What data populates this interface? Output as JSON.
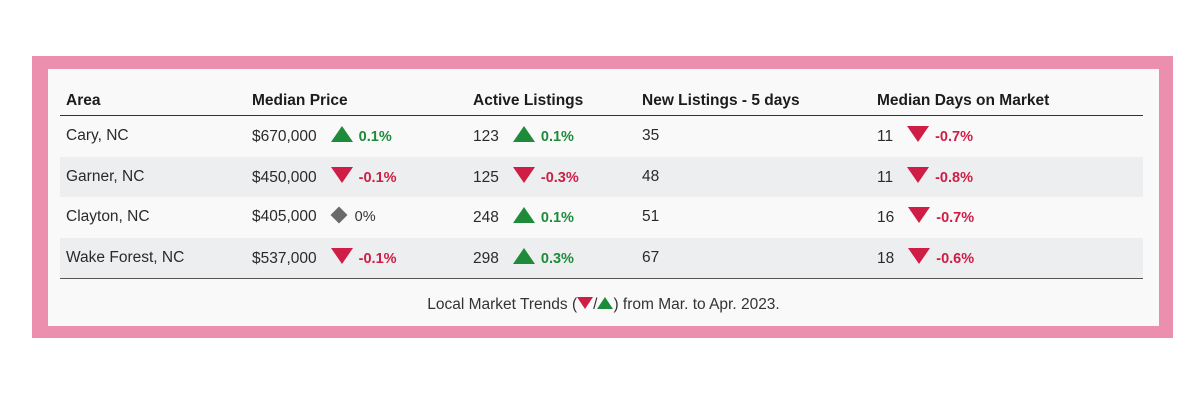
{
  "table": {
    "headers": [
      "Area",
      "Median Price",
      "Active Listings",
      "New Listings - 5 days",
      "Median Days on Market"
    ],
    "rows": [
      {
        "area": "Cary, NC",
        "price": "$670,000",
        "price_change": "0.1%",
        "price_dir": "up",
        "active": "123",
        "active_change": "0.1%",
        "active_dir": "up",
        "new": "35",
        "days": "11",
        "days_change": "-0.7%",
        "days_dir": "down"
      },
      {
        "area": "Garner, NC",
        "price": "$450,000",
        "price_change": "-0.1%",
        "price_dir": "down",
        "active": "125",
        "active_change": "-0.3%",
        "active_dir": "down",
        "new": "48",
        "days": "11",
        "days_change": "-0.8%",
        "days_dir": "down"
      },
      {
        "area": "Clayton, NC",
        "price": "$405,000",
        "price_change": "0%",
        "price_dir": "flat",
        "active": "248",
        "active_change": "0.1%",
        "active_dir": "up",
        "new": "51",
        "days": "16",
        "days_change": "-0.7%",
        "days_dir": "down"
      },
      {
        "area": "Wake Forest, NC",
        "price": "$537,000",
        "price_change": "-0.1%",
        "price_dir": "down",
        "active": "298",
        "active_change": "0.3%",
        "active_dir": "up",
        "new": "67",
        "days": "18",
        "days_change": "-0.6%",
        "days_dir": "down"
      }
    ]
  },
  "caption": {
    "prefix": "Local Market Trends (",
    "separator": "/",
    "suffix": ") from Mar. to Apr. 2023."
  },
  "colors": {
    "frame": "#ec8fae",
    "up": "#1e8b3a",
    "down": "#cf1d45",
    "flat": "#6a6a6a",
    "stripe": "#eceeef"
  }
}
